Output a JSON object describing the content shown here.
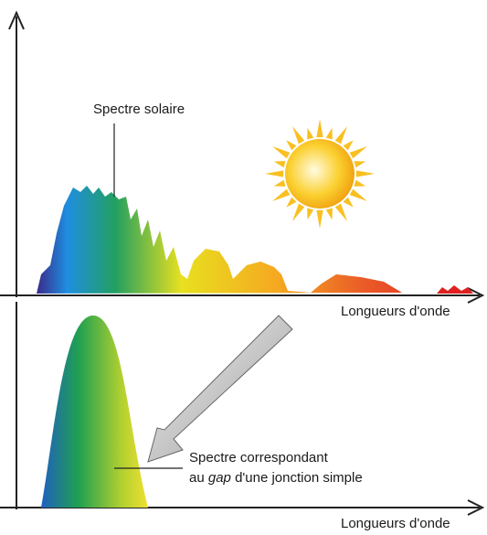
{
  "labels": {
    "solar_spectrum": "Spectre solaire",
    "top_axis": "Longueurs d'onde",
    "bottom_axis": "Longueurs d'onde",
    "gap_spectrum": {
      "line1": "Spectre correspondant",
      "line2": [
        "au",
        "gap",
        "d'une jonction simple"
      ]
    }
  }
}
